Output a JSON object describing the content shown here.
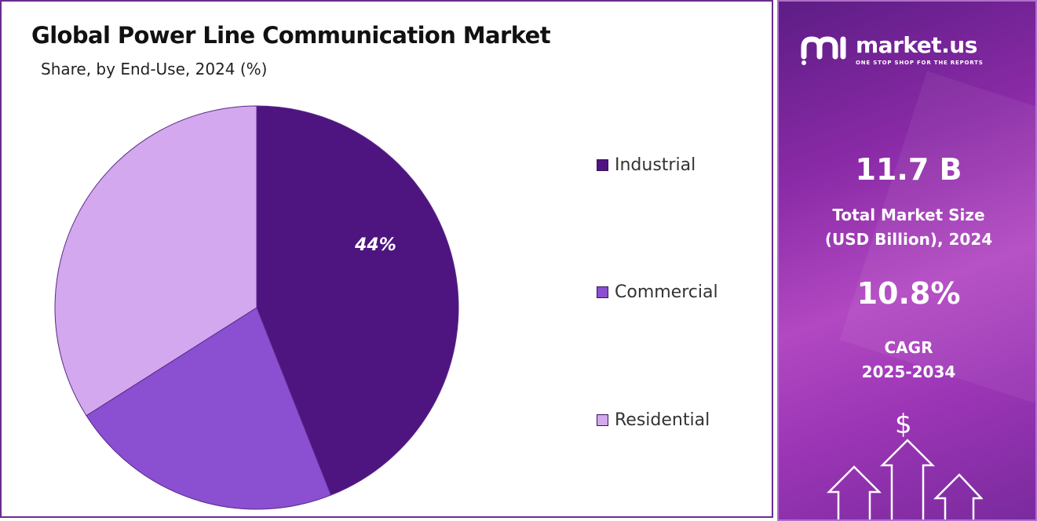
{
  "chart_data": {
    "type": "pie",
    "title": "Global Power Line Communication Market",
    "subtitle": "Share, by End-Use, 2024 (%)",
    "categories": [
      "Industrial",
      "Commercial",
      "Residential"
    ],
    "values": [
      44,
      22,
      34
    ],
    "colors": [
      "#4e1480",
      "#8b4fd1",
      "#d3a8ee"
    ],
    "data_labels": [
      "44%",
      "",
      ""
    ],
    "legend_position": "right"
  },
  "brand": {
    "name": "market.us",
    "tagline": "ONE STOP SHOP FOR THE REPORTS"
  },
  "stats": {
    "market_size_value": "11.7 B",
    "market_size_label_line1": "Total Market Size",
    "market_size_label_line2": "(USD Billion), 2024",
    "cagr_value": "10.8%",
    "cagr_label_line1": "CAGR",
    "cagr_label_line2": "2025-2034"
  },
  "icons": {
    "dollar": "$"
  }
}
